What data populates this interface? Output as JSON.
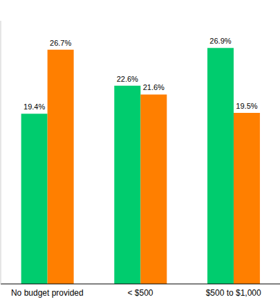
{
  "chart_data": {
    "type": "bar",
    "categories": [
      "No budget provided",
      "< $500",
      "$500 to $1,000"
    ],
    "series": [
      {
        "color": "#00CC6E",
        "values": [
          19.4,
          22.6,
          26.9
        ],
        "value_labels": [
          "19.4%",
          "22.6%",
          "26.9%"
        ]
      },
      {
        "color": "#FF7F00",
        "values": [
          26.7,
          21.6,
          19.5
        ],
        "value_labels": [
          "26.7%",
          "21.6%",
          "19.5%"
        ]
      }
    ],
    "ylim": [
      0,
      30
    ],
    "grid": false,
    "data_labels": true,
    "tick_labels": "x"
  }
}
